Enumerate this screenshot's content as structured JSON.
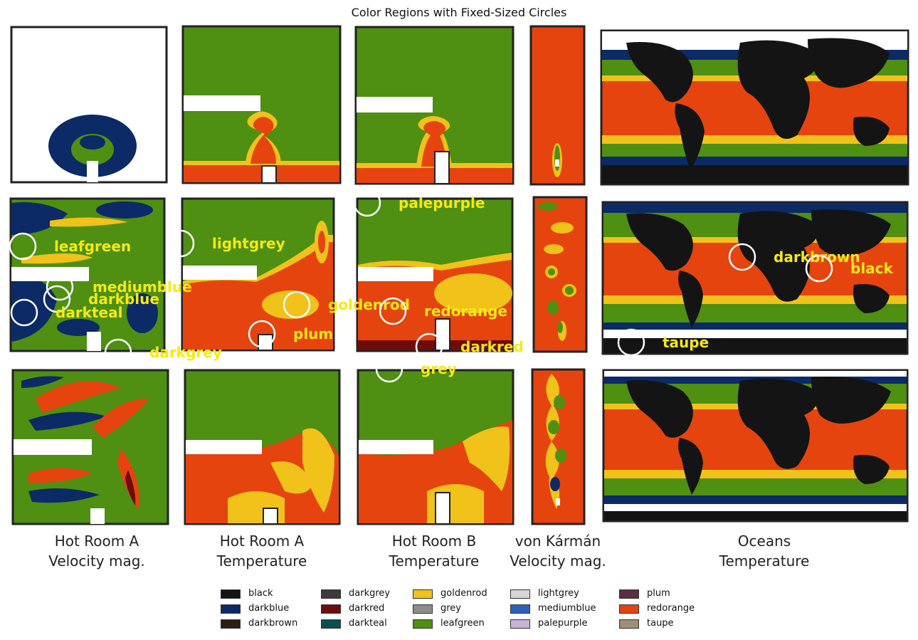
{
  "title": "Color Regions with Fixed-Sized Circles",
  "colors": {
    "black": "#141414",
    "darkblue": "#0b2a66",
    "darkbrown": "#2b1f12",
    "darkgrey": "#3b3b3b",
    "darkred": "#6e0c0c",
    "darkteal": "#0b4f52",
    "goldenrod": "#f0c21a",
    "grey": "#8c8c8c",
    "leafgreen": "#4f8f12",
    "lightgrey": "#d6d6d6",
    "mediumblue": "#2a62b8",
    "palepurple": "#c8b4d6",
    "plum": "#5a3040",
    "redorange": "#e5440f",
    "taupe": "#a08f76",
    "annotation": "#f5ea14"
  },
  "columns": [
    {
      "line1": "Hot Room A",
      "line2": "Velocity mag."
    },
    {
      "line1": "Hot Room A",
      "line2": "Temperature"
    },
    {
      "line1": "Hot Room B",
      "line2": "Temperature"
    },
    {
      "line1": "von Kármán",
      "line2": "Velocity mag."
    },
    {
      "line1": "Oceans",
      "line2": "Temperature"
    }
  ],
  "annotations": [
    {
      "label": "leafgreen"
    },
    {
      "label": "mediumblue"
    },
    {
      "label": "darkblue"
    },
    {
      "label": "darkteal"
    },
    {
      "label": "darkgrey"
    },
    {
      "label": "lightgrey"
    },
    {
      "label": "goldenrod"
    },
    {
      "label": "plum"
    },
    {
      "label": "palepurple"
    },
    {
      "label": "redorange"
    },
    {
      "label": "darkred"
    },
    {
      "label": "grey"
    },
    {
      "label": "darkbrown"
    },
    {
      "label": "black"
    },
    {
      "label": "taupe"
    }
  ],
  "legend": [
    {
      "label": "black",
      "color": "#141414"
    },
    {
      "label": "darkblue",
      "color": "#0b2a66"
    },
    {
      "label": "darkbrown",
      "color": "#2b1f12"
    },
    {
      "label": "darkgrey",
      "color": "#3b3b3b"
    },
    {
      "label": "darkred",
      "color": "#6e0c0c"
    },
    {
      "label": "darkteal",
      "color": "#0b4f52"
    },
    {
      "label": "goldenrod",
      "color": "#f0c21a"
    },
    {
      "label": "grey",
      "color": "#8c8c8c"
    },
    {
      "label": "leafgreen",
      "color": "#4f8f12"
    },
    {
      "label": "lightgrey",
      "color": "#d6d6d6"
    },
    {
      "label": "mediumblue",
      "color": "#2a62b8"
    },
    {
      "label": "palepurple",
      "color": "#c8b4d6"
    },
    {
      "label": "plum",
      "color": "#5a3040"
    },
    {
      "label": "redorange",
      "color": "#e5440f"
    },
    {
      "label": "taupe",
      "color": "#a08f76"
    }
  ]
}
